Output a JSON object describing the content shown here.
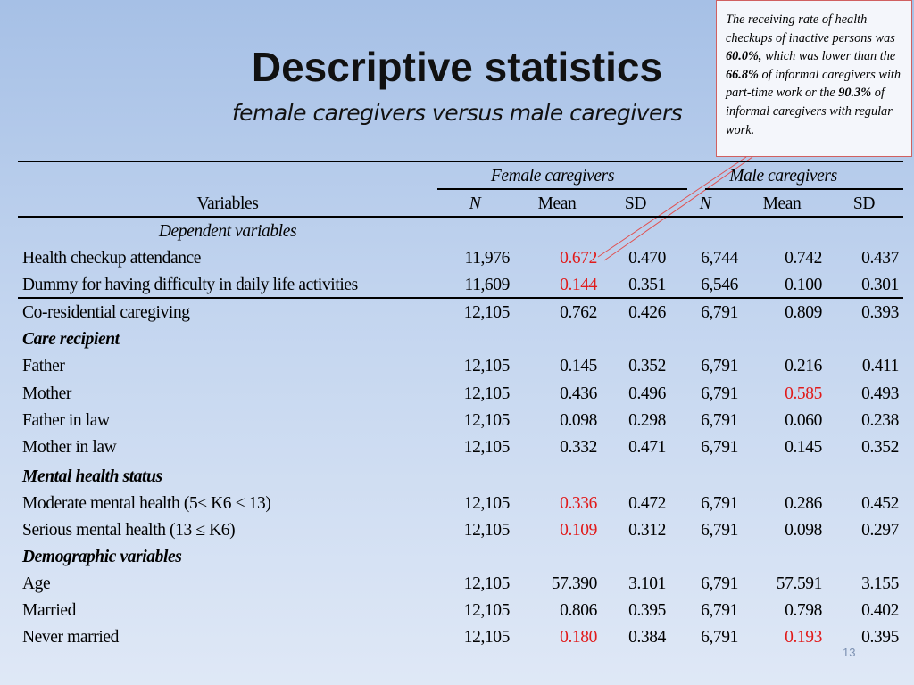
{
  "title": "Descriptive statistics",
  "subtitle": "female caregivers versus male caregivers",
  "callout": {
    "p1": "The receiving rate of health checkups of inactive persons was ",
    "v1": "60.0%,",
    "p2": " which was lower than the ",
    "v2": "66.8%",
    "p3": " of informal caregivers with part-time work or the ",
    "v3": "90.3%",
    "p4": " of informal caregivers with regular work."
  },
  "table": {
    "group_female": "Female caregivers",
    "group_male": "Male caregivers",
    "col_variables": "Variables",
    "col_n": "N",
    "col_mean": "Mean",
    "col_sd": "SD",
    "rows": [
      {
        "label": "Dependent variables",
        "type": "section-italic"
      },
      {
        "label": "Health checkup attendance",
        "f_n": "11,976",
        "f_mean": "0.672",
        "f_sd": "0.470",
        "m_n": "6,744",
        "m_mean": "0.742",
        "m_sd": "0.437"
      },
      {
        "label": "Dummy for having difficulty in daily life activities",
        "f_n": "11,609",
        "f_mean": "0.144",
        "f_sd": "0.351",
        "m_n": "6,546",
        "m_mean": "0.100",
        "m_sd": "0.301"
      },
      {
        "label": "Co-residential caregiving",
        "f_n": "12,105",
        "f_mean": "0.762",
        "f_sd": "0.426",
        "m_n": "6,791",
        "m_mean": "0.809",
        "m_sd": "0.393"
      },
      {
        "label": "Care recipient",
        "type": "section-bold"
      },
      {
        "label": "Father",
        "f_n": "12,105",
        "f_mean": "0.145",
        "f_sd": "0.352",
        "m_n": "6,791",
        "m_mean": "0.216",
        "m_sd": "0.411"
      },
      {
        "label": "Mother",
        "f_n": "12,105",
        "f_mean": "0.436",
        "f_sd": "0.496",
        "m_n": "6,791",
        "m_mean": "0.585",
        "m_sd": "0.493"
      },
      {
        "label": "Father in law",
        "f_n": "12,105",
        "f_mean": "0.098",
        "f_sd": "0.298",
        "m_n": "6,791",
        "m_mean": "0.060",
        "m_sd": "0.238"
      },
      {
        "label": "Mother in law",
        "f_n": "12,105",
        "f_mean": "0.332",
        "f_sd": "0.471",
        "m_n": "6,791",
        "m_mean": "0.145",
        "m_sd": "0.352"
      },
      {
        "label": "Mental health status",
        "type": "section-bold"
      },
      {
        "label": "Moderate mental health (5≤ K6 < 13)",
        "f_n": "12,105",
        "f_mean": "0.336",
        "f_sd": "0.472",
        "m_n": "6,791",
        "m_mean": "0.286",
        "m_sd": "0.452"
      },
      {
        "label": "Serious mental health (13 ≤ K6)",
        "f_n": "12,105",
        "f_mean": "0.109",
        "f_sd": "0.312",
        "m_n": "6,791",
        "m_mean": "0.098",
        "m_sd": "0.297"
      },
      {
        "label": "Demographic variables",
        "type": "section-bold"
      },
      {
        "label": "Age",
        "f_n": "12,105",
        "f_mean": "57.390",
        "f_sd": "3.101",
        "m_n": "6,791",
        "m_mean": "57.591",
        "m_sd": "3.155"
      },
      {
        "label": "Married",
        "f_n": "12,105",
        "f_mean": "0.806",
        "f_sd": "0.395",
        "m_n": "6,791",
        "m_mean": "0.798",
        "m_sd": "0.402"
      },
      {
        "label": "Never married",
        "f_n": "12,105",
        "f_mean": "0.180",
        "f_sd": "0.384",
        "m_n": "6,791",
        "m_mean": "0.193",
        "m_sd": "0.395"
      }
    ]
  },
  "highlight_color": "#e11b1b",
  "page_number": "13"
}
